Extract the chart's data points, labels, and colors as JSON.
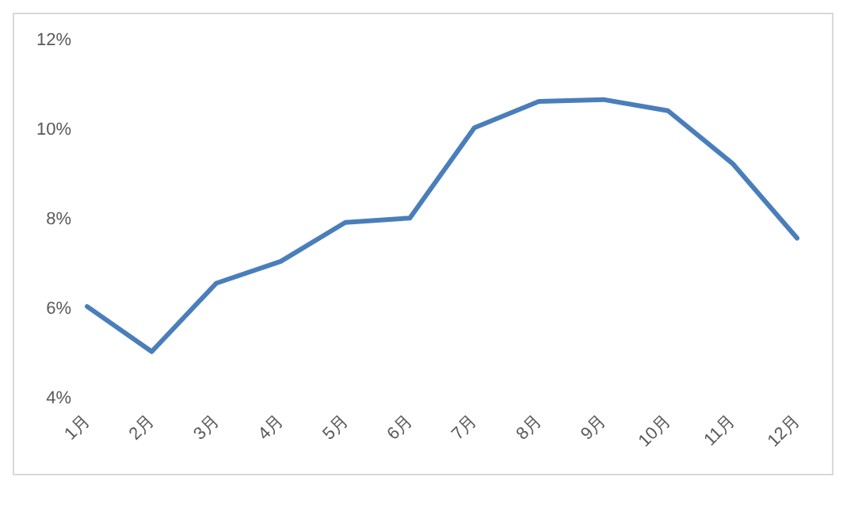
{
  "chart_data": {
    "type": "line",
    "categories": [
      "1月",
      "2月",
      "3月",
      "4月",
      "5月",
      "6月",
      "7月",
      "8月",
      "9月",
      "10月",
      "11月",
      "12月"
    ],
    "series": [
      {
        "color": "#4a7ebb",
        "values": [
          6.05,
          5.04,
          6.57,
          7.06,
          7.93,
          8.03,
          10.05,
          10.64,
          10.68,
          10.43,
          9.25,
          7.58
        ]
      }
    ],
    "ylim": [
      4,
      12
    ],
    "yticks": [
      {
        "value": 4,
        "label": "4%"
      },
      {
        "value": 6,
        "label": "6%"
      },
      {
        "value": 8,
        "label": "8%"
      },
      {
        "value": 10,
        "label": "10%"
      },
      {
        "value": 12,
        "label": "12%"
      }
    ],
    "grid": false,
    "legend": false,
    "marker": "none",
    "line_style": "solid"
  }
}
